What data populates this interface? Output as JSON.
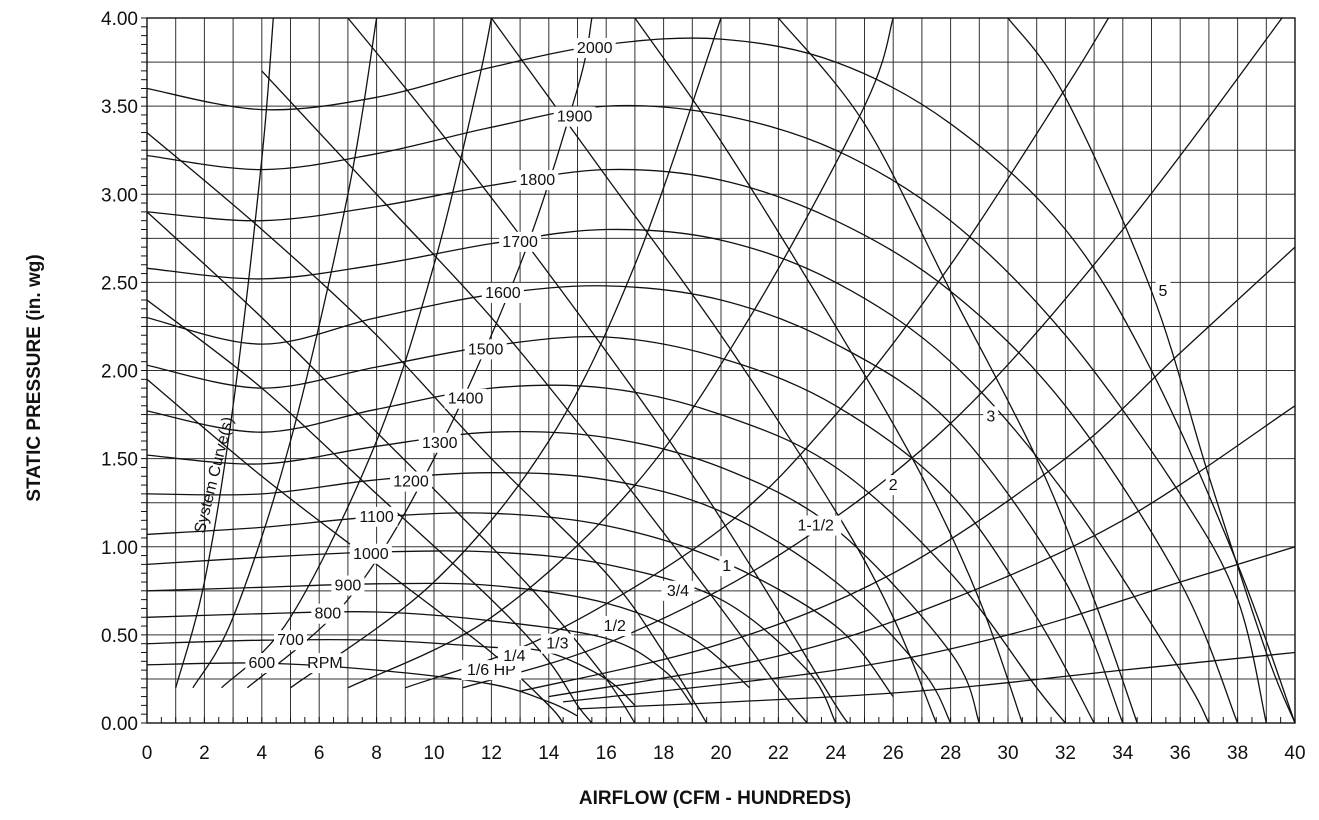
{
  "chart_data": {
    "type": "line",
    "xlabel": "AIRFLOW (CFM - HUNDREDS)",
    "ylabel": "STATIC PRESSURE (in. wg)",
    "xlim": [
      0,
      40
    ],
    "ylim": [
      0,
      4
    ],
    "x_ticks": [
      "0",
      "2",
      "4",
      "6",
      "8",
      "10",
      "12",
      "14",
      "16",
      "18",
      "20",
      "22",
      "24",
      "26",
      "28",
      "30",
      "32",
      "34",
      "36",
      "38",
      "40"
    ],
    "y_ticks": [
      "0.00",
      "0.50",
      "1.00",
      "1.50",
      "2.00",
      "2.50",
      "3.00",
      "3.50",
      "4.00"
    ],
    "grid": true,
    "rpm_unit_label": "RPM",
    "system_curve_label": "System Curve(s)",
    "rpm_curves": [
      {
        "name": "600",
        "points": [
          [
            0,
            0.33
          ],
          [
            4,
            0.34
          ],
          [
            8,
            0.3
          ],
          [
            12,
            0.22
          ],
          [
            14,
            0.12
          ],
          [
            15,
            0.04
          ]
        ]
      },
      {
        "name": "700",
        "points": [
          [
            0,
            0.45
          ],
          [
            4,
            0.47
          ],
          [
            8,
            0.47
          ],
          [
            12,
            0.43
          ],
          [
            14,
            0.4
          ],
          [
            16,
            0.25
          ],
          [
            17,
            0.1
          ]
        ]
      },
      {
        "name": "800",
        "points": [
          [
            0,
            0.6
          ],
          [
            4,
            0.62
          ],
          [
            8,
            0.63
          ],
          [
            12,
            0.58
          ],
          [
            16,
            0.48
          ],
          [
            18,
            0.3
          ],
          [
            19,
            0.1
          ]
        ]
      },
      {
        "name": "900",
        "points": [
          [
            0,
            0.75
          ],
          [
            4,
            0.77
          ],
          [
            8,
            0.79
          ],
          [
            12,
            0.78
          ],
          [
            16,
            0.68
          ],
          [
            19,
            0.48
          ],
          [
            21,
            0.2
          ]
        ]
      },
      {
        "name": "1000",
        "points": [
          [
            0,
            0.9
          ],
          [
            4,
            0.94
          ],
          [
            8,
            0.97
          ],
          [
            12,
            0.97
          ],
          [
            16,
            0.9
          ],
          [
            20,
            0.7
          ],
          [
            23,
            0.3
          ],
          [
            24,
            0.0
          ]
        ]
      },
      {
        "name": "1100",
        "points": [
          [
            0,
            1.07
          ],
          [
            4,
            1.11
          ],
          [
            8,
            1.17
          ],
          [
            12,
            1.19
          ],
          [
            16,
            1.12
          ],
          [
            20,
            0.92
          ],
          [
            24,
            0.55
          ],
          [
            26,
            0.15
          ]
        ]
      },
      {
        "name": "1200",
        "points": [
          [
            0,
            1.3
          ],
          [
            4,
            1.3
          ],
          [
            8,
            1.38
          ],
          [
            12,
            1.42
          ],
          [
            16,
            1.38
          ],
          [
            20,
            1.2
          ],
          [
            24,
            0.8
          ],
          [
            27,
            0.3
          ],
          [
            28,
            0.0
          ]
        ]
      },
      {
        "name": "1300",
        "points": [
          [
            0,
            1.52
          ],
          [
            4,
            1.47
          ],
          [
            8,
            1.57
          ],
          [
            12,
            1.65
          ],
          [
            16,
            1.62
          ],
          [
            20,
            1.45
          ],
          [
            24,
            1.1
          ],
          [
            28,
            0.4
          ],
          [
            29,
            0.0
          ]
        ]
      },
      {
        "name": "1400",
        "points": [
          [
            0,
            1.77
          ],
          [
            4,
            1.65
          ],
          [
            8,
            1.78
          ],
          [
            12,
            1.9
          ],
          [
            16,
            1.9
          ],
          [
            20,
            1.75
          ],
          [
            24,
            1.45
          ],
          [
            28,
            0.85
          ],
          [
            31,
            0.2
          ],
          [
            32,
            0.0
          ]
        ]
      },
      {
        "name": "1500",
        "points": [
          [
            0,
            2.03
          ],
          [
            4,
            1.9
          ],
          [
            8,
            2.02
          ],
          [
            12,
            2.14
          ],
          [
            16,
            2.19
          ],
          [
            20,
            2.07
          ],
          [
            24,
            1.8
          ],
          [
            28,
            1.3
          ],
          [
            31,
            0.6
          ],
          [
            33,
            0.0
          ]
        ]
      },
      {
        "name": "1600",
        "points": [
          [
            0,
            2.3
          ],
          [
            4,
            2.15
          ],
          [
            8,
            2.3
          ],
          [
            12,
            2.43
          ],
          [
            16,
            2.48
          ],
          [
            20,
            2.4
          ],
          [
            24,
            2.15
          ],
          [
            28,
            1.7
          ],
          [
            32,
            0.8
          ],
          [
            34,
            0.0
          ]
        ]
      },
      {
        "name": "1700",
        "points": [
          [
            0,
            2.58
          ],
          [
            4,
            2.52
          ],
          [
            8,
            2.6
          ],
          [
            12,
            2.72
          ],
          [
            16,
            2.8
          ],
          [
            20,
            2.74
          ],
          [
            24,
            2.5
          ],
          [
            28,
            2.05
          ],
          [
            32,
            1.3
          ],
          [
            36,
            0.3
          ],
          [
            37,
            0.0
          ]
        ]
      },
      {
        "name": "1800",
        "points": [
          [
            0,
            2.9
          ],
          [
            4,
            2.85
          ],
          [
            8,
            2.93
          ],
          [
            12,
            3.05
          ],
          [
            16,
            3.14
          ],
          [
            20,
            3.08
          ],
          [
            24,
            2.85
          ],
          [
            28,
            2.45
          ],
          [
            32,
            1.8
          ],
          [
            36,
            0.8
          ],
          [
            38,
            0.0
          ]
        ]
      },
      {
        "name": "1900",
        "points": [
          [
            0,
            3.22
          ],
          [
            4,
            3.14
          ],
          [
            8,
            3.23
          ],
          [
            12,
            3.38
          ],
          [
            16,
            3.5
          ],
          [
            20,
            3.45
          ],
          [
            24,
            3.25
          ],
          [
            28,
            2.85
          ],
          [
            32,
            2.2
          ],
          [
            36,
            1.3
          ],
          [
            38,
            0.7
          ],
          [
            39,
            0.0
          ]
        ]
      },
      {
        "name": "2000",
        "points": [
          [
            0,
            3.6
          ],
          [
            4,
            3.48
          ],
          [
            8,
            3.55
          ],
          [
            12,
            3.72
          ],
          [
            16,
            3.85
          ],
          [
            20,
            3.88
          ],
          [
            24,
            3.75
          ],
          [
            28,
            3.4
          ],
          [
            32,
            2.8
          ],
          [
            35,
            2.0
          ],
          [
            38,
            0.9
          ],
          [
            40,
            0.0
          ]
        ]
      }
    ],
    "hp_curves": [
      {
        "name": "1/6 HP",
        "points": [
          [
            0,
            1.95
          ],
          [
            4,
            1.4
          ],
          [
            8,
            0.9
          ],
          [
            12,
            0.4
          ],
          [
            14,
            0.1
          ],
          [
            14.5,
            0.0
          ]
        ]
      },
      {
        "name": "1/4",
        "points": [
          [
            0,
            2.4
          ],
          [
            4,
            1.9
          ],
          [
            8,
            1.3
          ],
          [
            12,
            0.7
          ],
          [
            14,
            0.35
          ],
          [
            15,
            0.1
          ],
          [
            15.5,
            0.0
          ]
        ]
      },
      {
        "name": "1/3",
        "points": [
          [
            0,
            2.9
          ],
          [
            4,
            2.3
          ],
          [
            8,
            1.65
          ],
          [
            12,
            1.0
          ],
          [
            14,
            0.65
          ],
          [
            16,
            0.25
          ],
          [
            17,
            0.0
          ]
        ]
      },
      {
        "name": "1/2",
        "points": [
          [
            0,
            3.35
          ],
          [
            4,
            2.8
          ],
          [
            8,
            2.2
          ],
          [
            12,
            1.5
          ],
          [
            16,
            0.85
          ],
          [
            18,
            0.4
          ],
          [
            19.5,
            0.0
          ]
        ]
      },
      {
        "name": "3/4",
        "points": [
          [
            4,
            3.7
          ],
          [
            8,
            3.0
          ],
          [
            12,
            2.3
          ],
          [
            16,
            1.5
          ],
          [
            20,
            0.65
          ],
          [
            22,
            0.2
          ],
          [
            23,
            0.0
          ]
        ]
      },
      {
        "name": "1",
        "points": [
          [
            7,
            4.0
          ],
          [
            10,
            3.4
          ],
          [
            14,
            2.55
          ],
          [
            18,
            1.65
          ],
          [
            21,
            0.9
          ],
          [
            24,
            0.1
          ],
          [
            24.5,
            0.0
          ]
        ]
      },
      {
        "name": "1-1/2",
        "points": [
          [
            12,
            4.0
          ],
          [
            16,
            3.1
          ],
          [
            20,
            2.2
          ],
          [
            24,
            1.2
          ],
          [
            26,
            0.6
          ],
          [
            27.5,
            0.0
          ]
        ]
      },
      {
        "name": "2",
        "points": [
          [
            17,
            4.0
          ],
          [
            20,
            3.3
          ],
          [
            24,
            2.25
          ],
          [
            27,
            1.4
          ],
          [
            29,
            0.7
          ],
          [
            30.5,
            0.0
          ]
        ]
      },
      {
        "name": "3",
        "points": [
          [
            22,
            4.0
          ],
          [
            25,
            3.4
          ],
          [
            28,
            2.45
          ],
          [
            31,
            1.5
          ],
          [
            33,
            0.7
          ],
          [
            34.5,
            0.0
          ]
        ]
      },
      {
        "name": "5",
        "points": [
          [
            30,
            4.0
          ],
          [
            32,
            3.55
          ],
          [
            35,
            2.45
          ],
          [
            37,
            1.4
          ],
          [
            39,
            0.4
          ],
          [
            40,
            0.0
          ]
        ]
      }
    ],
    "system_curves": [
      {
        "points": [
          [
            1.0,
            0.2
          ],
          [
            2.0,
            0.8
          ],
          [
            3.0,
            1.8
          ],
          [
            4.0,
            3.2
          ],
          [
            4.4,
            4.0
          ]
        ]
      },
      {
        "points": [
          [
            1.6,
            0.2
          ],
          [
            3.0,
            0.6
          ],
          [
            5.0,
            1.6
          ],
          [
            7.0,
            3.0
          ],
          [
            8.0,
            4.0
          ]
        ]
      },
      {
        "points": [
          [
            2.6,
            0.2
          ],
          [
            5.0,
            0.6
          ],
          [
            8.0,
            1.6
          ],
          [
            10.0,
            2.6
          ],
          [
            11.5,
            3.6
          ],
          [
            12.0,
            4.0
          ]
        ]
      },
      {
        "points": [
          [
            3.5,
            0.2
          ],
          [
            7.0,
            0.7
          ],
          [
            10.0,
            1.5
          ],
          [
            13.0,
            2.6
          ],
          [
            15.0,
            3.6
          ],
          [
            15.5,
            4.0
          ]
        ]
      },
      {
        "points": [
          [
            5.0,
            0.2
          ],
          [
            10.0,
            0.8
          ],
          [
            14.0,
            1.6
          ],
          [
            17.0,
            2.6
          ],
          [
            20.0,
            4.0
          ]
        ]
      },
      {
        "points": [
          [
            7.0,
            0.2
          ],
          [
            12.0,
            0.6
          ],
          [
            17.0,
            1.35
          ],
          [
            21.0,
            2.3
          ],
          [
            25.0,
            3.5
          ],
          [
            26.0,
            4.0
          ]
        ]
      },
      {
        "points": [
          [
            9.0,
            0.2
          ],
          [
            14.0,
            0.5
          ],
          [
            20.0,
            1.1
          ],
          [
            24.0,
            1.75
          ],
          [
            28.0,
            2.6
          ],
          [
            32.0,
            3.6
          ],
          [
            33.5,
            4.0
          ]
        ]
      },
      {
        "points": [
          [
            11.0,
            0.2
          ],
          [
            16.0,
            0.45
          ],
          [
            22.0,
            0.95
          ],
          [
            28.0,
            1.7
          ],
          [
            34.0,
            2.8
          ],
          [
            40.0,
            4.1
          ]
        ]
      },
      {
        "points": [
          [
            13.0,
            0.18
          ],
          [
            20.0,
            0.45
          ],
          [
            26.0,
            0.85
          ],
          [
            32.0,
            1.5
          ],
          [
            36.0,
            2.1
          ],
          [
            40.0,
            2.7
          ]
        ]
      },
      {
        "points": [
          [
            14.0,
            0.15
          ],
          [
            22.0,
            0.38
          ],
          [
            28.0,
            0.7
          ],
          [
            34.0,
            1.15
          ],
          [
            40.0,
            1.8
          ]
        ]
      },
      {
        "points": [
          [
            14.5,
            0.12
          ],
          [
            24.0,
            0.3
          ],
          [
            30.0,
            0.5
          ],
          [
            36.0,
            0.8
          ],
          [
            40.0,
            1.0
          ]
        ]
      },
      {
        "points": [
          [
            15.0,
            0.08
          ],
          [
            26.0,
            0.17
          ],
          [
            34.0,
            0.3
          ],
          [
            40.0,
            0.4
          ]
        ]
      }
    ]
  }
}
